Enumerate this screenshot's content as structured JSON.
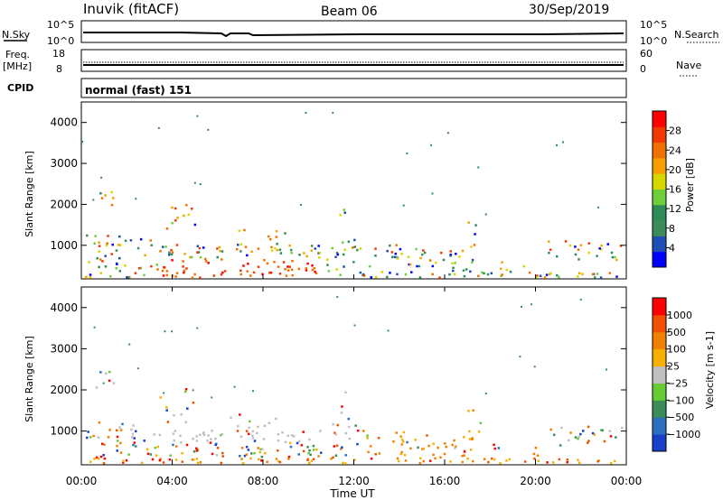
{
  "header": {
    "station": "Inuvik (fitACF)",
    "beam": "Beam 06",
    "date": "30/Sep/2019"
  },
  "top_panels": {
    "nsky_label": "N.Sky",
    "nsearch_label": "N.Search",
    "nsky_ticks": [
      "10^5",
      "10^0"
    ],
    "freq_label_1": "Freq.",
    "freq_label_2": "[MHz]",
    "freq_ticks": [
      "18",
      "8"
    ],
    "nave_label": "Nave",
    "nave_ticks": [
      "60",
      "0"
    ],
    "cpid_label": "CPID",
    "cpid_value": "normal (fast) 151"
  },
  "chart_data": [
    {
      "type": "heatmap",
      "ylabel": "Slant Range [km]",
      "yticks": [
        1000,
        2000,
        3000,
        4000
      ],
      "ylim": [
        180,
        4500
      ],
      "xticks": [
        "00:00",
        "04:00",
        "08:00",
        "12:00",
        "16:00",
        "20:00",
        "00:00"
      ],
      "xlim_hours": [
        0,
        24
      ],
      "colorbar": {
        "label": "Power [dB]",
        "ticks": [
          "28",
          "24",
          "20",
          "16",
          "12",
          "8",
          "4"
        ],
        "colors": [
          "#0000ff",
          "#1f4fb4",
          "#3c8c5a",
          "#2e8b57",
          "#6fcf3a",
          "#d7d700",
          "#f5a000",
          "#f07000",
          "#f03a00",
          "#ff0000"
        ]
      }
    },
    {
      "type": "heatmap",
      "ylabel": "Slant Range [km]",
      "yticks": [
        1000,
        2000,
        3000,
        4000
      ],
      "ylim": [
        180,
        4500
      ],
      "xticks": [
        "00:00",
        "04:00",
        "08:00",
        "12:00",
        "16:00",
        "20:00",
        "00:00"
      ],
      "xlim_hours": [
        0,
        24
      ],
      "xlabel": "Time UT",
      "colorbar": {
        "label": "Velocity [m s-1]",
        "ticks": [
          "1000",
          "500",
          "100",
          "25",
          "−25",
          "−100",
          "−500",
          "−1000"
        ],
        "colors": [
          "#1a3fc8",
          "#2a6fbf",
          "#3c8c5a",
          "#66cc33",
          "#c0c0c0",
          "#f5b000",
          "#f08000",
          "#f05000",
          "#ff0000"
        ]
      }
    }
  ]
}
